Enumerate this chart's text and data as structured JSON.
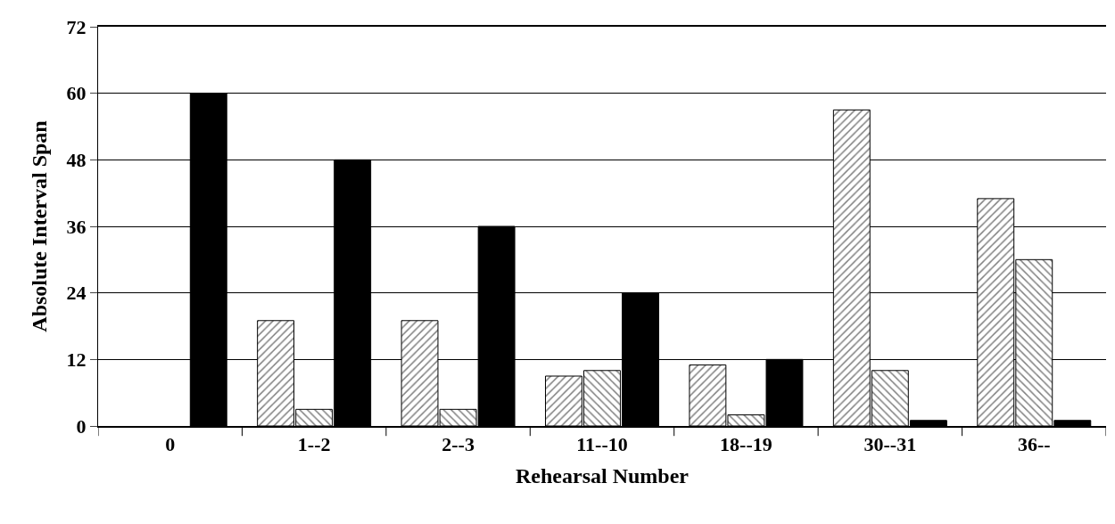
{
  "chart_data": {
    "type": "bar",
    "xlabel": "Rehearsal Number",
    "ylabel": "Absolute Interval Span",
    "categories": [
      "0",
      "1--2",
      "2--3",
      "11--10",
      "18--19",
      "30--31",
      "36--"
    ],
    "series": [
      {
        "color": "#000000",
        "values": [
          0,
          19,
          19,
          9,
          11,
          57,
          41
        ]
      },
      {
        "color": "#000000",
        "values": [
          0,
          3,
          3,
          10,
          2,
          10,
          30
        ]
      },
      {
        "color": "#000000",
        "values": [
          60,
          48,
          36,
          24,
          12,
          1,
          1
        ]
      }
    ],
    "ylim": [
      0,
      72
    ],
    "yticks": [
      0,
      12,
      24,
      36,
      48,
      60,
      72
    ],
    "grid": "y"
  }
}
